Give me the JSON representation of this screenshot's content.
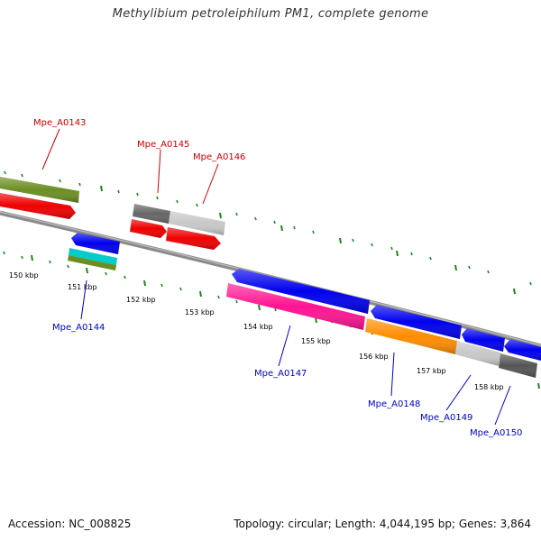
{
  "title": "Methylibium petroleiphilum PM1, complete genome",
  "footer": {
    "accession": "Accession: NC_008825",
    "topology": "Topology: circular; Length: 4,044,195 bp; Genes: 3,864"
  },
  "colors": {
    "forward_label": "#cc0000",
    "reverse_label": "#0000cc",
    "tick": "#1a8a1a",
    "backbone": "#888888"
  },
  "kbp_labels": [
    "150 kbp",
    "151 kbp",
    "152 kbp",
    "153 kbp",
    "154 kbp",
    "155 kbp",
    "156 kbp",
    "157 kbp",
    "158 kbp"
  ],
  "gene_labels": {
    "Mpe_A0143": "Mpe_A0143",
    "Mpe_A0144": "Mpe_A0144",
    "Mpe_A0145": "Mpe_A0145",
    "Mpe_A0146": "Mpe_A0146",
    "Mpe_A0147": "Mpe_A0147",
    "Mpe_A0148": "Mpe_A0148",
    "Mpe_A0149": "Mpe_A0149",
    "Mpe_A0150": "Mpe_A0150"
  }
}
